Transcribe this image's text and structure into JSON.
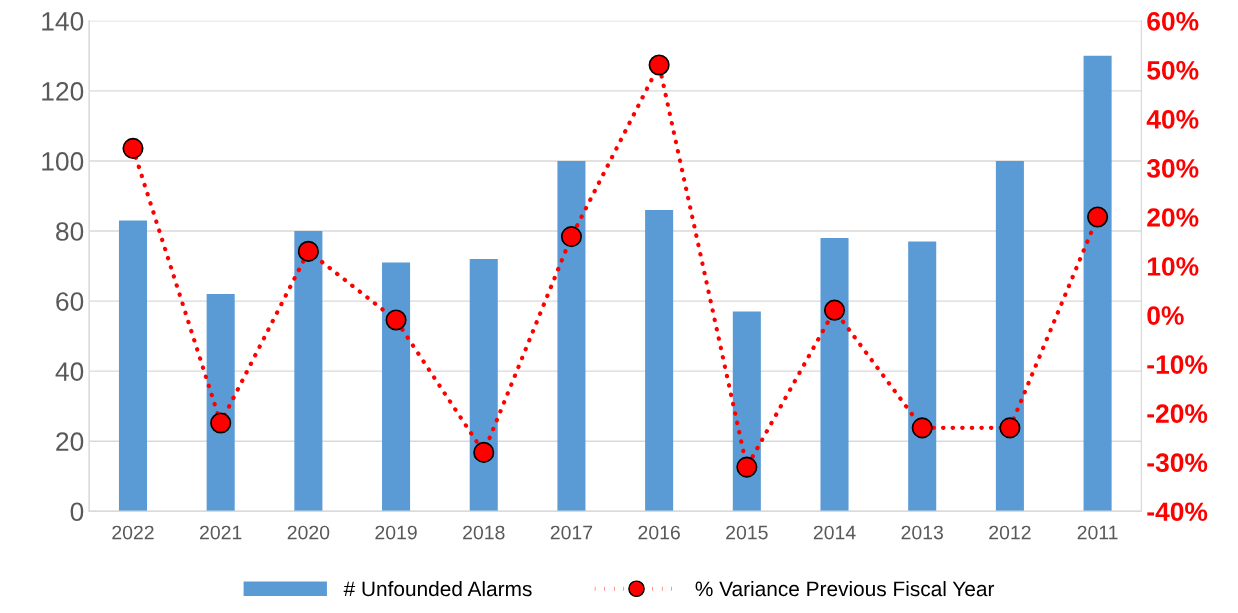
{
  "chart_data": {
    "type": "bar",
    "categories": [
      "2022",
      "2021",
      "2020",
      "2019",
      "2018",
      "2017",
      "2016",
      "2015",
      "2014",
      "2013",
      "2012",
      "2011"
    ],
    "series": [
      {
        "name": "# Unfounded Alarms",
        "color": "#5b9bd5",
        "values": [
          83,
          62,
          80,
          71,
          72,
          100,
          86,
          57,
          78,
          77,
          100,
          130
        ]
      },
      {
        "name": "% Variance Previous Fiscal Year",
        "type": "line",
        "axis": "y2",
        "color": "#ff0000",
        "marker": "circle",
        "line_style": "dotted",
        "values": [
          34,
          -22,
          13,
          -1,
          -28,
          16,
          51,
          -31,
          1,
          -23,
          -23,
          20
        ]
      }
    ],
    "ylim": [
      0,
      140
    ],
    "yticks": [
      0,
      20,
      40,
      60,
      80,
      100,
      120,
      140
    ],
    "y2lim": [
      -40,
      60
    ],
    "y2ticks": [
      {
        "value": -40,
        "label": "-40%"
      },
      {
        "value": -30,
        "label": "-30%"
      },
      {
        "value": -20,
        "label": "-20%"
      },
      {
        "value": -10,
        "label": "-10%"
      },
      {
        "value": 0,
        "label": "0%"
      },
      {
        "value": 10,
        "label": "10%"
      },
      {
        "value": 20,
        "label": "20%"
      },
      {
        "value": 30,
        "label": "30%"
      },
      {
        "value": 40,
        "label": "40%"
      },
      {
        "value": 50,
        "label": "50%"
      },
      {
        "value": 60,
        "label": "60%"
      }
    ],
    "grid": "y",
    "legend": "bottom"
  }
}
